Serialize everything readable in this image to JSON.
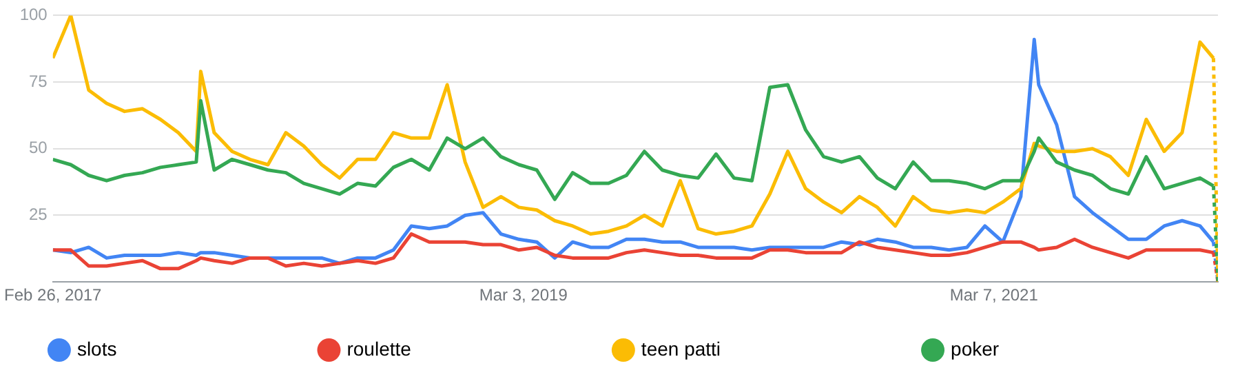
{
  "chart_data": {
    "type": "line",
    "x": [
      "2017-02-26",
      "2017-03-26",
      "2017-04-23",
      "2017-05-21",
      "2017-06-18",
      "2017-07-16",
      "2017-08-13",
      "2017-09-10",
      "2017-10-08",
      "2017-10-15",
      "2017-11-05",
      "2017-12-03",
      "2017-12-31",
      "2018-01-28",
      "2018-02-25",
      "2018-03-25",
      "2018-04-22",
      "2018-05-20",
      "2018-06-17",
      "2018-07-15",
      "2018-08-12",
      "2018-09-09",
      "2018-10-07",
      "2018-11-04",
      "2018-12-02",
      "2018-12-30",
      "2019-01-27",
      "2019-02-24",
      "2019-03-24",
      "2019-04-21",
      "2019-05-19",
      "2019-06-16",
      "2019-07-14",
      "2019-08-11",
      "2019-09-08",
      "2019-10-06",
      "2019-11-03",
      "2019-12-01",
      "2019-12-29",
      "2020-01-26",
      "2020-02-23",
      "2020-03-22",
      "2020-04-19",
      "2020-05-17",
      "2020-06-14",
      "2020-07-12",
      "2020-08-09",
      "2020-09-06",
      "2020-10-04",
      "2020-11-01",
      "2020-11-29",
      "2020-12-27",
      "2021-01-24",
      "2021-02-21",
      "2021-03-21",
      "2021-04-18",
      "2021-05-09",
      "2021-05-16",
      "2021-06-13",
      "2021-07-11",
      "2021-08-08",
      "2021-09-05",
      "2021-10-03",
      "2021-10-31",
      "2021-11-28",
      "2021-12-26",
      "2022-01-23",
      "2022-02-13",
      "2022-02-20"
    ],
    "series": [
      {
        "name": "slots",
        "color": "#4285f4",
        "values": [
          12,
          11,
          13,
          9,
          10,
          10,
          10,
          11,
          10,
          11,
          11,
          10,
          9,
          9,
          9,
          9,
          9,
          7,
          9,
          9,
          12,
          21,
          20,
          21,
          25,
          26,
          18,
          16,
          15,
          9,
          15,
          13,
          13,
          16,
          16,
          15,
          15,
          13,
          13,
          13,
          12,
          13,
          13,
          13,
          13,
          15,
          14,
          16,
          15,
          13,
          13,
          12,
          13,
          21,
          15,
          32,
          91,
          74,
          59,
          32,
          26,
          21,
          16,
          16,
          21,
          23,
          21,
          15,
          0
        ]
      },
      {
        "name": "roulette",
        "color": "#ea4335",
        "values": [
          12,
          12,
          6,
          6,
          7,
          8,
          5,
          5,
          8,
          9,
          8,
          7,
          9,
          9,
          6,
          7,
          6,
          7,
          8,
          7,
          9,
          18,
          15,
          15,
          15,
          14,
          14,
          12,
          13,
          10,
          9,
          9,
          9,
          11,
          12,
          11,
          10,
          10,
          9,
          9,
          9,
          12,
          12,
          11,
          11,
          11,
          15,
          13,
          12,
          11,
          10,
          10,
          11,
          13,
          15,
          15,
          13,
          12,
          13,
          16,
          13,
          11,
          9,
          12,
          12,
          12,
          12,
          11,
          0
        ]
      },
      {
        "name": "teen patti",
        "color": "#fbbc04",
        "values": [
          84,
          100,
          72,
          67,
          64,
          65,
          61,
          56,
          49,
          79,
          56,
          49,
          46,
          44,
          56,
          51,
          44,
          39,
          46,
          46,
          56,
          54,
          54,
          74,
          45,
          28,
          32,
          28,
          27,
          23,
          21,
          18,
          19,
          21,
          25,
          21,
          38,
          20,
          18,
          19,
          21,
          33,
          49,
          35,
          30,
          26,
          32,
          28,
          21,
          32,
          27,
          26,
          27,
          26,
          30,
          35,
          52,
          51,
          49,
          49,
          50,
          47,
          40,
          61,
          49,
          56,
          90,
          84,
          0
        ]
      },
      {
        "name": "poker",
        "color": "#34a853",
        "values": [
          46,
          44,
          40,
          38,
          40,
          41,
          43,
          44,
          45,
          68,
          42,
          46,
          44,
          42,
          41,
          37,
          35,
          33,
          37,
          36,
          43,
          46,
          42,
          54,
          50,
          54,
          47,
          44,
          42,
          31,
          41,
          37,
          37,
          40,
          49,
          42,
          40,
          39,
          48,
          39,
          38,
          73,
          74,
          57,
          47,
          45,
          47,
          39,
          35,
          45,
          38,
          38,
          37,
          35,
          38,
          38,
          49,
          54,
          45,
          42,
          40,
          35,
          33,
          47,
          35,
          37,
          39,
          36,
          0
        ]
      }
    ],
    "xlim": [
      "2017-02-26",
      "2022-02-20"
    ],
    "xticks": [
      {
        "value": "2017-02-26",
        "label": "Feb 26, 2017"
      },
      {
        "value": "2019-03-03",
        "label": "Mar 3, 2019"
      },
      {
        "value": "2021-03-07",
        "label": "Mar 7, 2021"
      }
    ],
    "ylim": [
      0,
      100
    ],
    "yticks": [
      {
        "value": 0,
        "label": null
      },
      25,
      50,
      75,
      100
    ],
    "grid": "y",
    "legend": "bottom",
    "marker": "none"
  }
}
